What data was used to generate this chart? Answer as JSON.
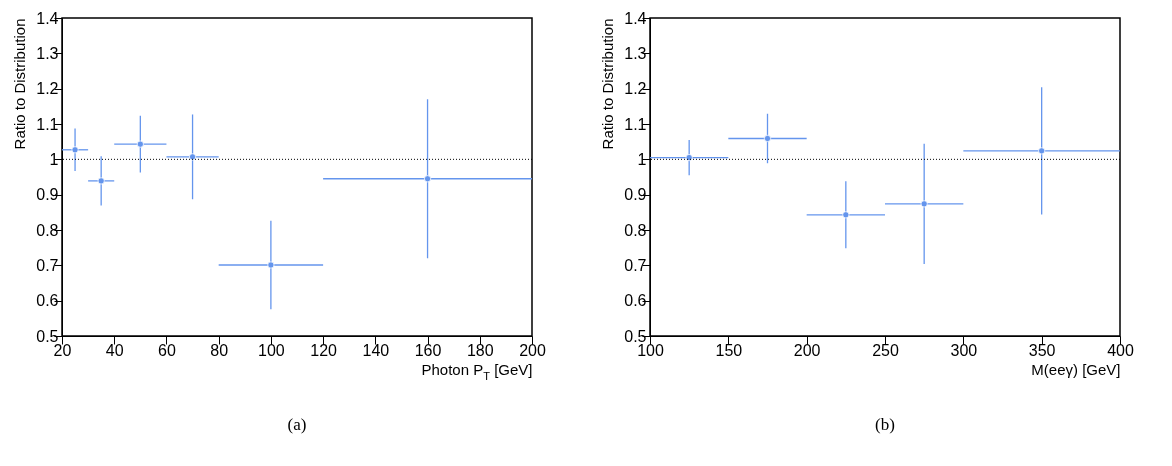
{
  "chart_data": [
    {
      "type": "scatter",
      "xlabel": "Photon P$_{T}$ [GeV]",
      "ylabel": "Ratio to Distribution",
      "color": "#6495ed",
      "marker": "circle",
      "x": [
        25,
        35,
        50,
        70,
        100,
        160
      ],
      "values": [
        1.027,
        0.939,
        1.043,
        1.007,
        0.701,
        0.945
      ],
      "errors": [
        0.06,
        0.07,
        0.08,
        0.12,
        0.125,
        0.225
      ],
      "xerrors": [
        5,
        5,
        10,
        10,
        20,
        40
      ],
      "xlim": [
        20,
        200
      ],
      "xticks": [
        20,
        40,
        60,
        80,
        100,
        120,
        140,
        160,
        180,
        200
      ],
      "ylim": [
        0.5,
        1.4
      ],
      "yticks": [
        0.5,
        0.6,
        0.7,
        0.8,
        0.9,
        1,
        1.1,
        1.2,
        1.3,
        1.4
      ],
      "ref_lines": [
        {
          "axis": "y",
          "value": 1,
          "color": "#000000",
          "line_style": "dotted"
        }
      ],
      "annotations": [
        "(a)"
      ]
    },
    {
      "type": "scatter",
      "xlabel": "M(eeγ) [GeV]",
      "ylabel": "Ratio to Distribution",
      "color": "#6495ed",
      "marker": "circle",
      "x": [
        125,
        175,
        225,
        275,
        350
      ],
      "values": [
        1.005,
        1.059,
        0.843,
        0.874,
        1.024
      ],
      "errors": [
        0.05,
        0.07,
        0.095,
        0.17,
        0.18
      ],
      "xerrors": [
        25,
        25,
        25,
        25,
        50
      ],
      "xlim": [
        100,
        400
      ],
      "xticks": [
        100,
        150,
        200,
        250,
        300,
        350,
        400
      ],
      "ylim": [
        0.5,
        1.4
      ],
      "yticks": [
        0.5,
        0.6,
        0.7,
        0.8,
        0.9,
        1,
        1.1,
        1.2,
        1.3,
        1.4
      ],
      "ref_lines": [
        {
          "axis": "y",
          "value": 1,
          "color": "#000000",
          "line_style": "dotted"
        }
      ],
      "annotations": [
        "(b)"
      ]
    }
  ]
}
